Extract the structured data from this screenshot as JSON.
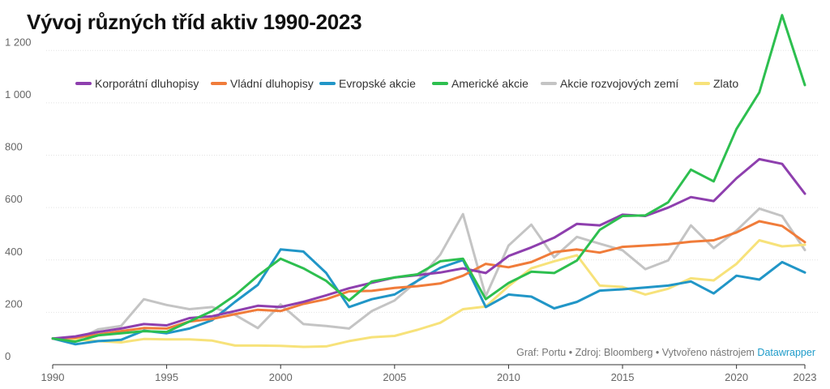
{
  "chart_data": {
    "type": "line",
    "title": "Vývoj různých tříd aktiv 1990-2023",
    "xlabel": "",
    "ylabel": "",
    "xlim": [
      1990,
      2023
    ],
    "ylim": [
      0,
      1300
    ],
    "x_ticks": [
      1990,
      1995,
      2000,
      2005,
      2010,
      2015,
      2020,
      2023
    ],
    "y_ticks": [
      0,
      200,
      400,
      600,
      800,
      1000,
      1200
    ],
    "y_tick_labels": [
      "0",
      "200",
      "400",
      "600",
      "800",
      "1 000",
      "1 200"
    ],
    "grid": "horizontal",
    "legend_position": "top",
    "x": [
      1990,
      1991,
      1992,
      1993,
      1994,
      1995,
      1996,
      1997,
      1998,
      1999,
      2000,
      2001,
      2002,
      2003,
      2004,
      2005,
      2006,
      2007,
      2008,
      2009,
      2010,
      2011,
      2012,
      2013,
      2014,
      2015,
      2016,
      2017,
      2018,
      2019,
      2020,
      2021,
      2022,
      2023
    ],
    "series": [
      {
        "name": "Korporátní dluhopisy",
        "color": "#8e3fae",
        "values": [
          100,
          108,
          125,
          138,
          155,
          150,
          178,
          185,
          205,
          225,
          220,
          240,
          265,
          292,
          313,
          333,
          342,
          352,
          368,
          350,
          415,
          448,
          485,
          538,
          532,
          573,
          568,
          600,
          640,
          625,
          712,
          785,
          767,
          653
        ]
      },
      {
        "name": "Vládní dluhopisy",
        "color": "#f07c3a",
        "values": [
          100,
          103,
          115,
          128,
          140,
          138,
          165,
          175,
          193,
          210,
          205,
          232,
          250,
          280,
          282,
          293,
          300,
          310,
          340,
          385,
          372,
          392,
          430,
          440,
          428,
          450,
          455,
          460,
          470,
          475,
          505,
          548,
          530,
          468
        ]
      },
      {
        "name": "Evropské akcie",
        "color": "#2196c7",
        "values": [
          100,
          78,
          90,
          95,
          130,
          120,
          138,
          170,
          240,
          305,
          440,
          432,
          350,
          220,
          250,
          268,
          320,
          370,
          400,
          220,
          268,
          260,
          215,
          240,
          283,
          288,
          295,
          302,
          318,
          272,
          340,
          325,
          392,
          352
        ]
      },
      {
        "name": "Americké akcie",
        "color": "#2dbf4f",
        "values": [
          100,
          88,
          112,
          120,
          128,
          125,
          165,
          205,
          265,
          340,
          405,
          368,
          320,
          245,
          318,
          333,
          345,
          395,
          405,
          250,
          312,
          355,
          350,
          398,
          515,
          568,
          570,
          620,
          745,
          700,
          900,
          1040,
          1335,
          1068
        ]
      },
      {
        "name": "Akcie rozvojových zemí",
        "color": "#c4c4c4",
        "values": [
          100,
          93,
          135,
          148,
          250,
          228,
          212,
          220,
          190,
          140,
          230,
          155,
          148,
          138,
          205,
          245,
          320,
          420,
          575,
          262,
          455,
          535,
          410,
          488,
          462,
          437,
          365,
          398,
          532,
          445,
          512,
          596,
          568,
          438
        ]
      },
      {
        "name": "Zlato",
        "color": "#f7e27a",
        "values": [
          100,
          97,
          90,
          85,
          98,
          97,
          97,
          92,
          73,
          73,
          72,
          68,
          70,
          90,
          105,
          110,
          133,
          160,
          212,
          222,
          300,
          368,
          395,
          418,
          302,
          297,
          268,
          290,
          330,
          322,
          385,
          475,
          452,
          458
        ]
      }
    ]
  },
  "credit": {
    "text": "Graf: Portu • Zdroj: Bloomberg • Vytvořeno nástrojem ",
    "link": "Datawrapper"
  }
}
